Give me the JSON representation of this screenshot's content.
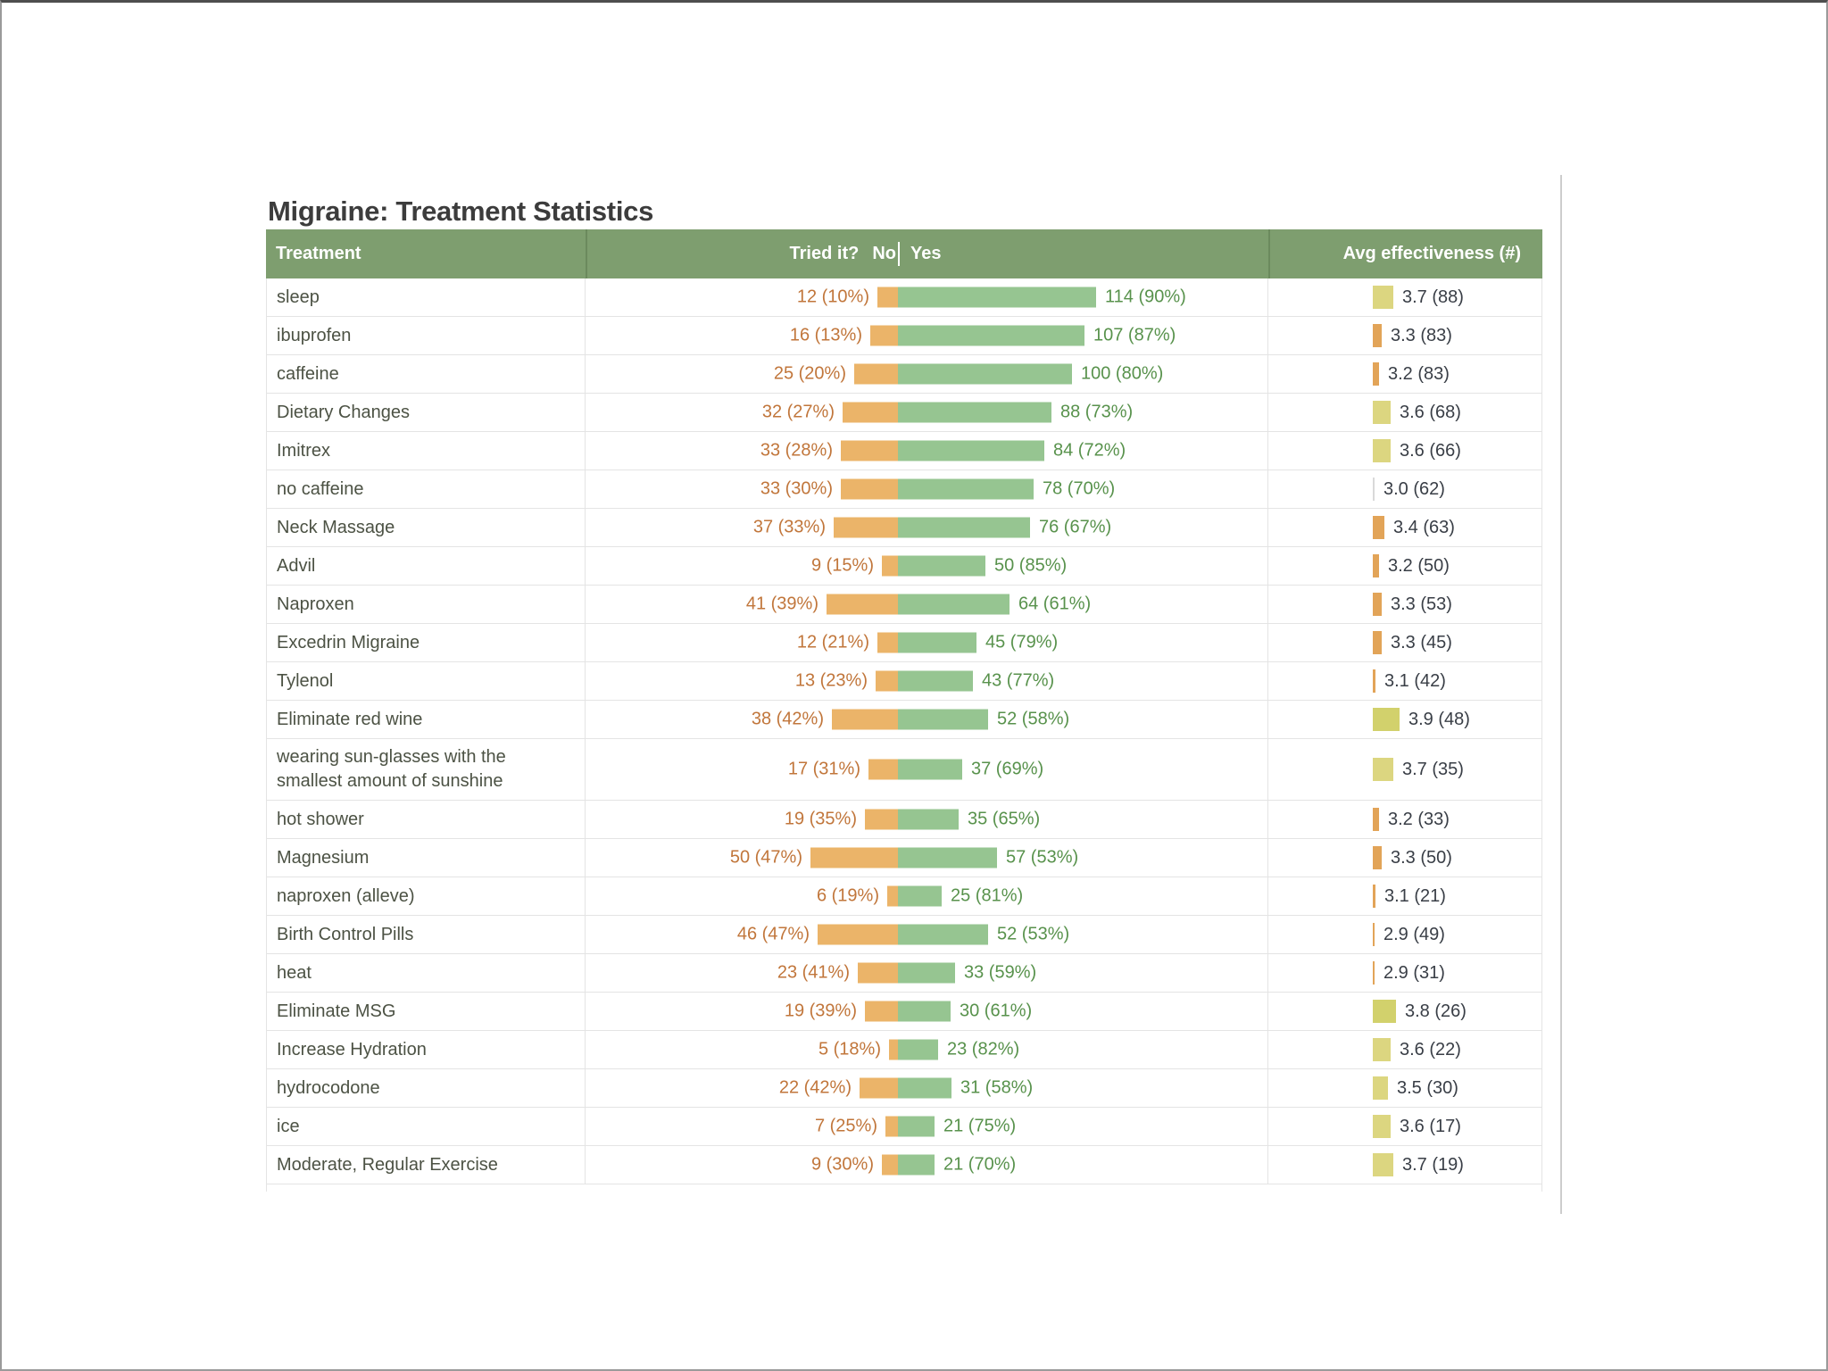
{
  "page": {
    "title": "Migraine: Treatment Statistics"
  },
  "table": {
    "headers": {
      "treatment": "Treatment",
      "tried_it": "Tried it?",
      "no": "No",
      "yes": "Yes",
      "avg_effectiveness": "Avg effectiveness (#)"
    },
    "rows": [
      {
        "treatment": "sleep",
        "no": 12,
        "no_label": "12 (10%)",
        "yes": 114,
        "yes_label": "114 (90%)",
        "eff": 3.7,
        "eff_label": "3.7 (88)"
      },
      {
        "treatment": "ibuprofen",
        "no": 16,
        "no_label": "16 (13%)",
        "yes": 107,
        "yes_label": "107 (87%)",
        "eff": 3.3,
        "eff_label": "3.3 (83)"
      },
      {
        "treatment": "caffeine",
        "no": 25,
        "no_label": "25 (20%)",
        "yes": 100,
        "yes_label": "100 (80%)",
        "eff": 3.2,
        "eff_label": "3.2 (83)"
      },
      {
        "treatment": "Dietary Changes",
        "no": 32,
        "no_label": "32 (27%)",
        "yes": 88,
        "yes_label": "88 (73%)",
        "eff": 3.6,
        "eff_label": "3.6 (68)"
      },
      {
        "treatment": "Imitrex",
        "no": 33,
        "no_label": "33 (28%)",
        "yes": 84,
        "yes_label": "84 (72%)",
        "eff": 3.6,
        "eff_label": "3.6 (66)"
      },
      {
        "treatment": "no caffeine",
        "no": 33,
        "no_label": "33 (30%)",
        "yes": 78,
        "yes_label": "78 (70%)",
        "eff": 3.0,
        "eff_label": "3.0 (62)"
      },
      {
        "treatment": "Neck Massage",
        "no": 37,
        "no_label": "37 (33%)",
        "yes": 76,
        "yes_label": "76 (67%)",
        "eff": 3.4,
        "eff_label": "3.4 (63)"
      },
      {
        "treatment": "Advil",
        "no": 9,
        "no_label": "9 (15%)",
        "yes": 50,
        "yes_label": "50 (85%)",
        "eff": 3.2,
        "eff_label": "3.2 (50)"
      },
      {
        "treatment": "Naproxen",
        "no": 41,
        "no_label": "41 (39%)",
        "yes": 64,
        "yes_label": "64 (61%)",
        "eff": 3.3,
        "eff_label": "3.3 (53)"
      },
      {
        "treatment": "Excedrin Migraine",
        "no": 12,
        "no_label": "12 (21%)",
        "yes": 45,
        "yes_label": "45 (79%)",
        "eff": 3.3,
        "eff_label": "3.3 (45)"
      },
      {
        "treatment": "Tylenol",
        "no": 13,
        "no_label": "13 (23%)",
        "yes": 43,
        "yes_label": "43 (77%)",
        "eff": 3.1,
        "eff_label": "3.1 (42)"
      },
      {
        "treatment": "Eliminate red wine",
        "no": 38,
        "no_label": "38 (42%)",
        "yes": 52,
        "yes_label": "52 (58%)",
        "eff": 3.9,
        "eff_label": "3.9 (48)"
      },
      {
        "treatment": "wearing sun-glasses with the smallest amount of sunshine",
        "no": 17,
        "no_label": "17 (31%)",
        "yes": 37,
        "yes_label": "37 (69%)",
        "eff": 3.7,
        "eff_label": "3.7 (35)"
      },
      {
        "treatment": "hot shower",
        "no": 19,
        "no_label": "19 (35%)",
        "yes": 35,
        "yes_label": "35 (65%)",
        "eff": 3.2,
        "eff_label": "3.2 (33)"
      },
      {
        "treatment": "Magnesium",
        "no": 50,
        "no_label": "50 (47%)",
        "yes": 57,
        "yes_label": "57 (53%)",
        "eff": 3.3,
        "eff_label": "3.3 (50)"
      },
      {
        "treatment": "naproxen (alleve)",
        "no": 6,
        "no_label": "6 (19%)",
        "yes": 25,
        "yes_label": "25 (81%)",
        "eff": 3.1,
        "eff_label": "3.1 (21)"
      },
      {
        "treatment": "Birth Control Pills",
        "no": 46,
        "no_label": "46 (47%)",
        "yes": 52,
        "yes_label": "52 (53%)",
        "eff": 2.9,
        "eff_label": "2.9 (49)"
      },
      {
        "treatment": "heat",
        "no": 23,
        "no_label": "23 (41%)",
        "yes": 33,
        "yes_label": "33 (59%)",
        "eff": 2.9,
        "eff_label": "2.9 (31)"
      },
      {
        "treatment": "Eliminate MSG",
        "no": 19,
        "no_label": "19 (39%)",
        "yes": 30,
        "yes_label": "30 (61%)",
        "eff": 3.8,
        "eff_label": "3.8 (26)"
      },
      {
        "treatment": "Increase Hydration",
        "no": 5,
        "no_label": "5 (18%)",
        "yes": 23,
        "yes_label": "23 (82%)",
        "eff": 3.6,
        "eff_label": "3.6 (22)"
      },
      {
        "treatment": "hydrocodone",
        "no": 22,
        "no_label": "22 (42%)",
        "yes": 31,
        "yes_label": "31 (58%)",
        "eff": 3.5,
        "eff_label": "3.5 (30)"
      },
      {
        "treatment": "ice",
        "no": 7,
        "no_label": "7 (25%)",
        "yes": 21,
        "yes_label": "21 (75%)",
        "eff": 3.6,
        "eff_label": "3.6 (17)"
      },
      {
        "treatment": "Moderate, Regular Exercise",
        "no": 9,
        "no_label": "9 (30%)",
        "yes": 21,
        "yes_label": "21 (70%)",
        "eff": 3.7,
        "eff_label": "3.7 (19)"
      }
    ]
  },
  "colors": {
    "header_bg": "#7E9E6F",
    "no_bar": "#EBB469",
    "yes_bar": "#96C591",
    "no_text": "#C1763B",
    "yes_text": "#58924C",
    "eff_low": "#E2A458",
    "eff_mid": "#DCD680",
    "eff_high": "#D2D16C",
    "eff_neutral": "#D9D9D9",
    "treatment_text": "#4C5244",
    "eff_text": "#393E46"
  },
  "chart_data": {
    "type": "bar",
    "subtype": "table-with-embedded-bars",
    "title": "Migraine: Treatment Statistics",
    "columns": [
      "Treatment",
      "Tried it? No",
      "Tried it? Yes",
      "Avg effectiveness (#)"
    ],
    "categories": [
      "sleep",
      "ibuprofen",
      "caffeine",
      "Dietary Changes",
      "Imitrex",
      "no caffeine",
      "Neck Massage",
      "Advil",
      "Naproxen",
      "Excedrin Migraine",
      "Tylenol",
      "Eliminate red wine",
      "wearing sun-glasses with the smallest amount of sunshine",
      "hot shower",
      "Magnesium",
      "naproxen (alleve)",
      "Birth Control Pills",
      "heat",
      "Eliminate MSG",
      "Increase Hydration",
      "hydrocodone",
      "ice",
      "Moderate, Regular Exercise"
    ],
    "series": [
      {
        "name": "Tried it? No (count)",
        "values": [
          12,
          16,
          25,
          32,
          33,
          33,
          37,
          9,
          41,
          12,
          13,
          38,
          17,
          19,
          50,
          6,
          46,
          23,
          19,
          5,
          22,
          7,
          9
        ]
      },
      {
        "name": "Tried it? No (%)",
        "values": [
          10,
          13,
          20,
          27,
          28,
          30,
          33,
          15,
          39,
          21,
          23,
          42,
          31,
          35,
          47,
          19,
          47,
          41,
          39,
          18,
          42,
          25,
          30
        ]
      },
      {
        "name": "Tried it? Yes (count)",
        "values": [
          114,
          107,
          100,
          88,
          84,
          78,
          76,
          50,
          64,
          45,
          43,
          52,
          37,
          35,
          57,
          25,
          52,
          33,
          30,
          23,
          31,
          21,
          21
        ]
      },
      {
        "name": "Tried it? Yes (%)",
        "values": [
          90,
          87,
          80,
          73,
          72,
          70,
          67,
          85,
          61,
          79,
          77,
          58,
          69,
          65,
          53,
          81,
          53,
          59,
          61,
          82,
          58,
          75,
          70
        ]
      },
      {
        "name": "Avg effectiveness",
        "values": [
          3.7,
          3.3,
          3.2,
          3.6,
          3.6,
          3.0,
          3.4,
          3.2,
          3.3,
          3.3,
          3.1,
          3.9,
          3.7,
          3.2,
          3.3,
          3.1,
          2.9,
          2.9,
          3.8,
          3.6,
          3.5,
          3.6,
          3.7
        ]
      },
      {
        "name": "Effectiveness ratings (#)",
        "values": [
          88,
          83,
          83,
          68,
          66,
          62,
          63,
          50,
          53,
          45,
          42,
          48,
          35,
          33,
          50,
          21,
          49,
          31,
          26,
          22,
          30,
          17,
          19
        ]
      }
    ],
    "legend_position": "none",
    "grid": false,
    "bar_scale_note": "No/Yes bar lengths proportional to raw counts; effectiveness bar length proportional to (value - 3.0)"
  }
}
